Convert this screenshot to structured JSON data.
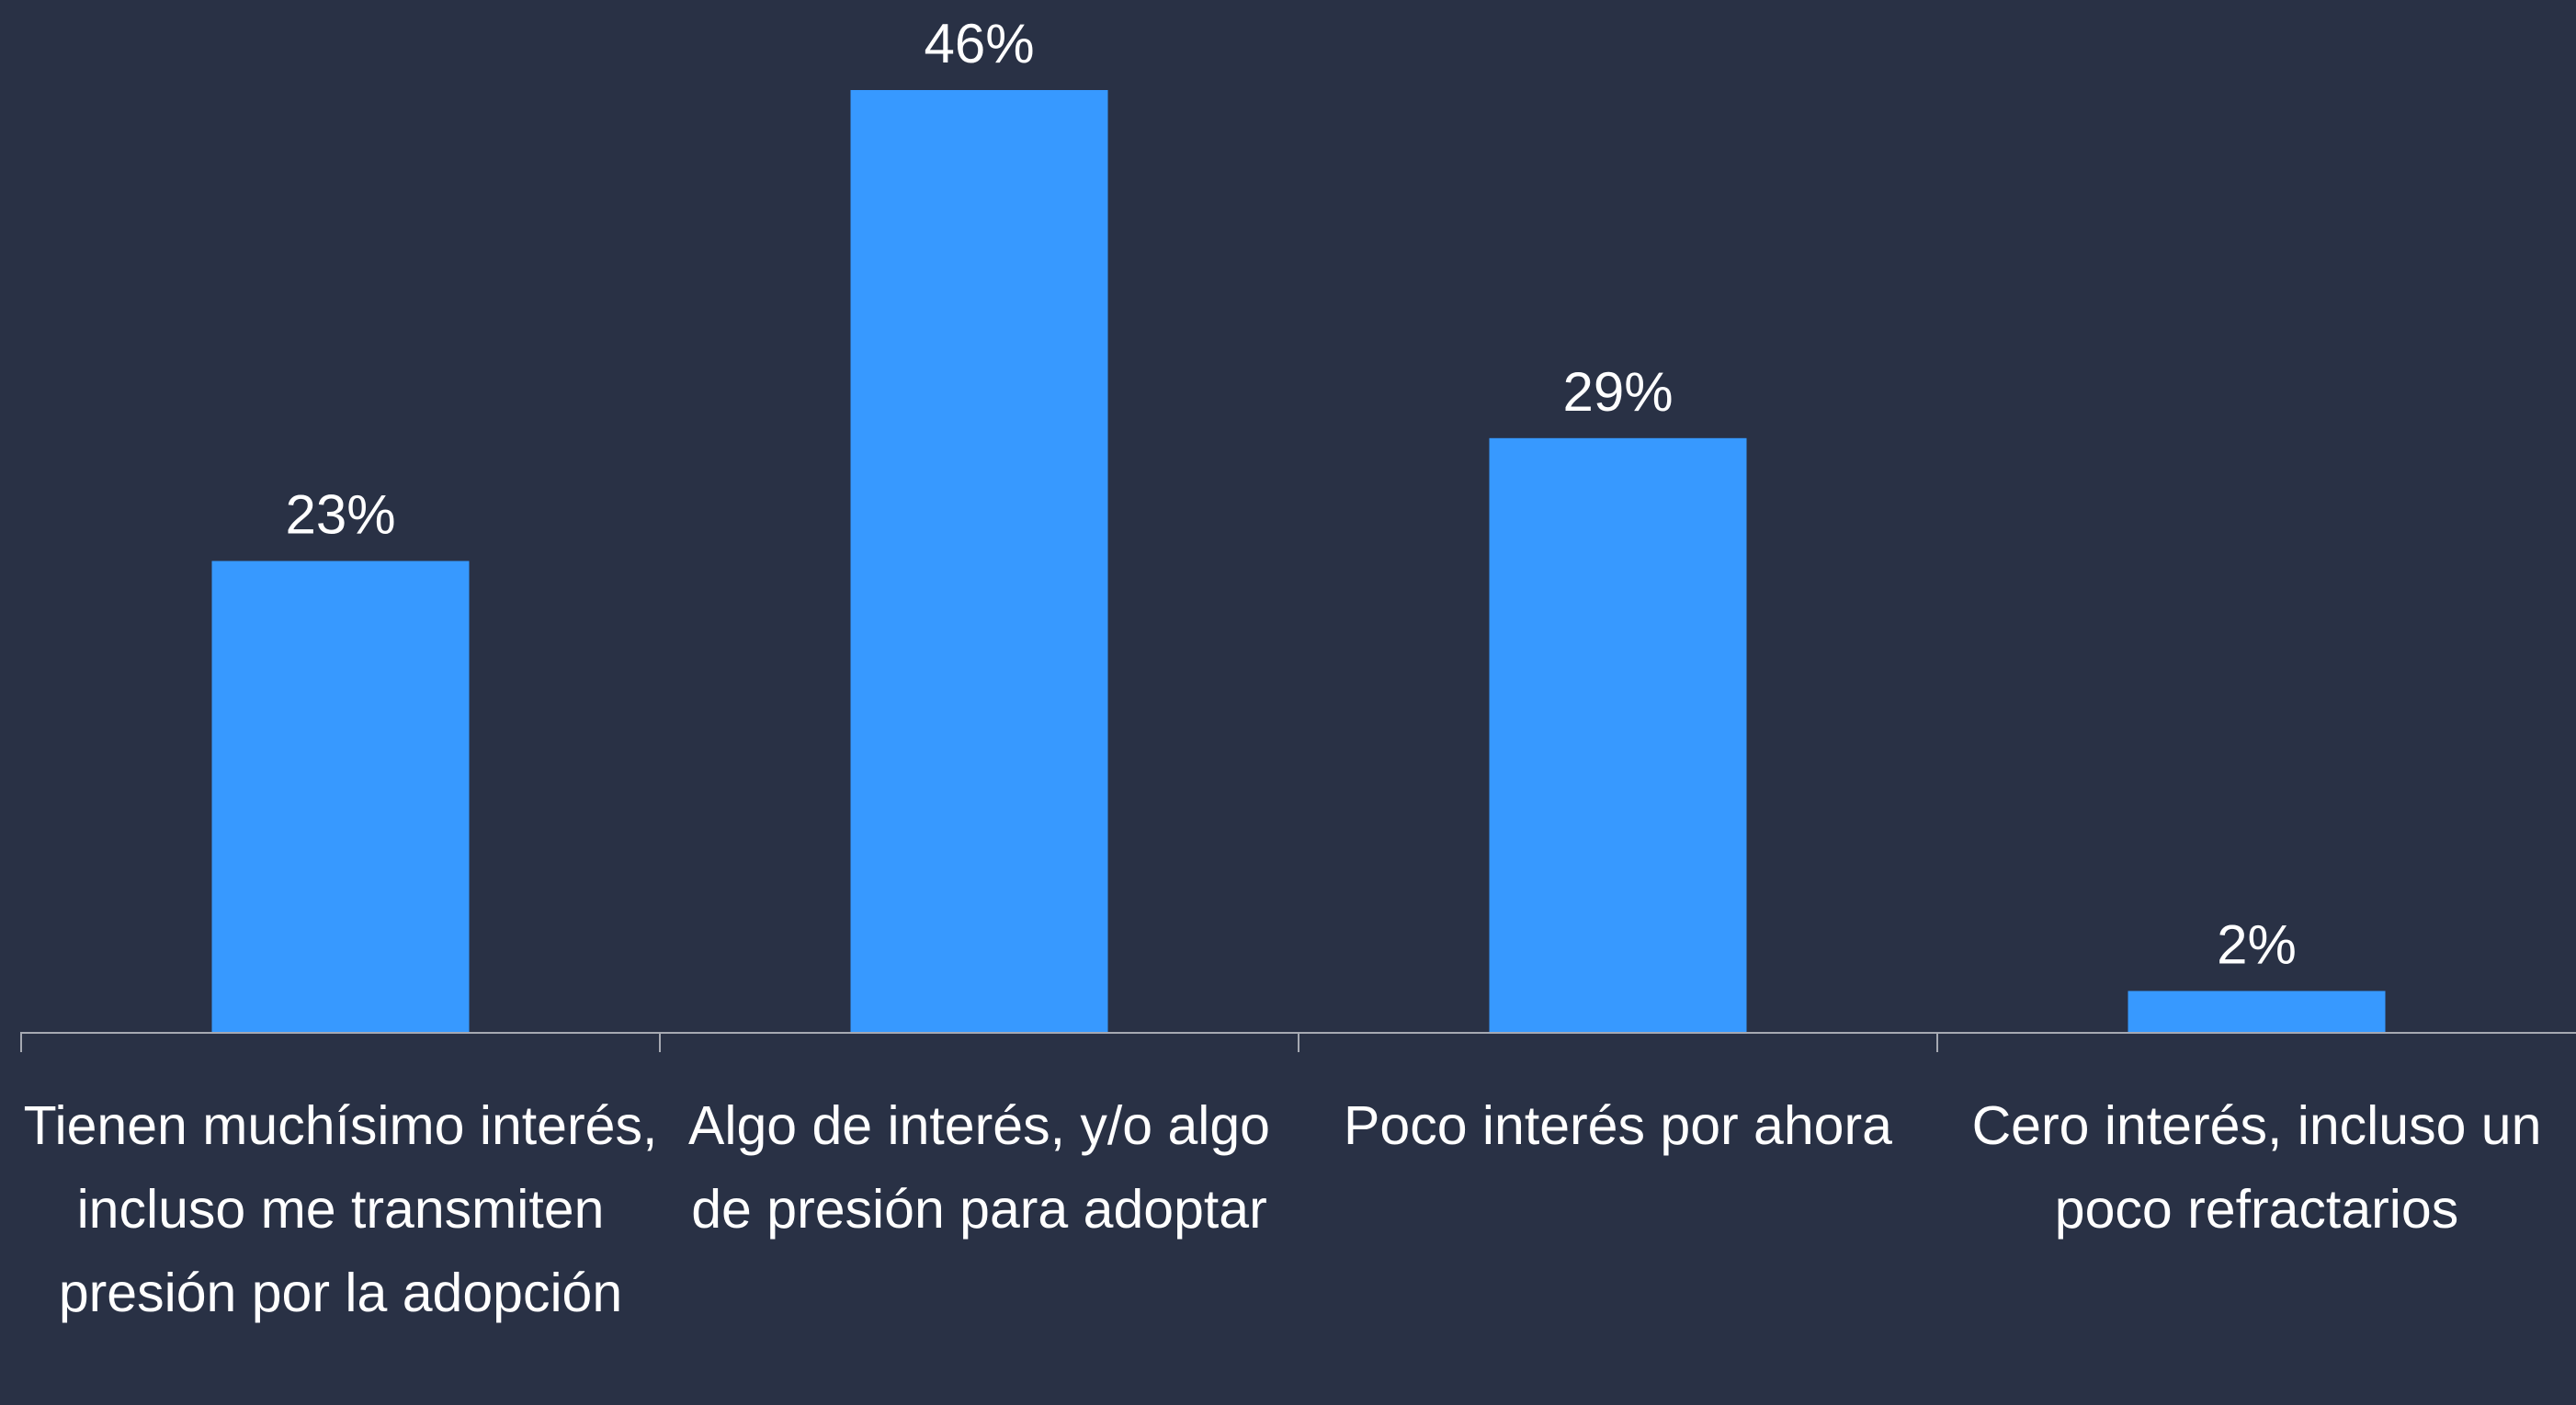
{
  "chart_data": {
    "type": "bar",
    "categories": [
      "Tienen muchísimo interés, incluso me transmiten presión por la adopción",
      "Algo de interés, y/o algo de presión para adoptar",
      "Poco interés por ahora",
      "Cero interés, incluso un poco refractarios"
    ],
    "values": [
      23,
      46,
      29,
      2
    ],
    "value_labels": [
      "23%",
      "46%",
      "29%",
      "2%"
    ],
    "color": "#3799ff"
  }
}
